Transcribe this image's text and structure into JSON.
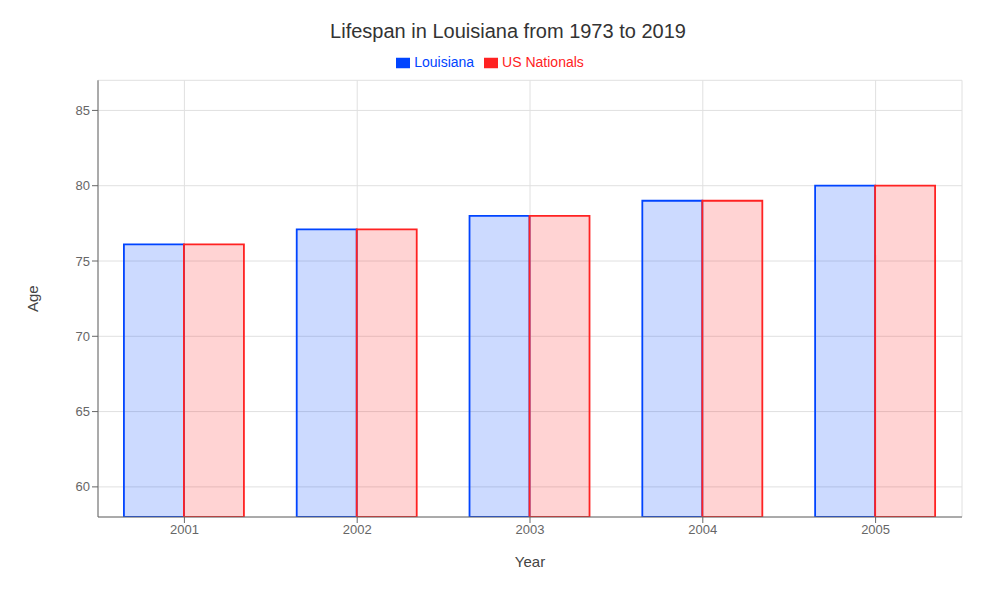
{
  "chart_data": {
    "type": "bar",
    "title": "Lifespan in Louisiana from 1973 to 2019",
    "x_label": "Year",
    "y_label": "Age",
    "categories": [
      "2001",
      "2002",
      "2003",
      "2004",
      "2005"
    ],
    "series": [
      {
        "name": "Louisiana",
        "color": "#0044ff",
        "values": [
          76.1,
          77.1,
          78.0,
          79.0,
          80.0
        ]
      },
      {
        "name": "US Nationals",
        "color": "#ff2222",
        "values": [
          76.1,
          77.1,
          78.0,
          79.0,
          80.0
        ]
      }
    ],
    "ylim": [
      58,
      87
    ],
    "yticks": [
      60,
      65,
      70,
      75,
      80,
      85
    ],
    "grid": true,
    "legend": "top"
  }
}
